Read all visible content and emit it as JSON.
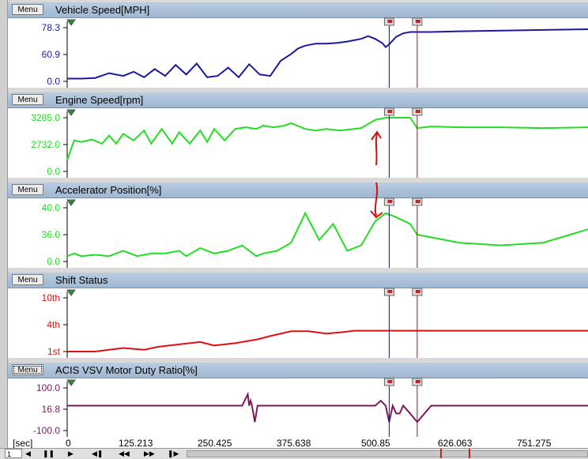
{
  "panels": [
    {
      "menu_label": "Menu",
      "title": "Vehicle Speed[MPH]",
      "color": "#1a1aa0",
      "y_ticks": [
        "78.3",
        "60.9",
        "0.0"
      ]
    },
    {
      "menu_label": "Menu",
      "title": "Engine Speed[rpm]",
      "color": "#22dd22",
      "y_ticks": [
        "3285.0",
        "2732.0",
        "0.0"
      ]
    },
    {
      "menu_label": "Menu",
      "title": "Accelerator Position[%]",
      "color": "#22dd22",
      "y_ticks": [
        "40.0",
        "36.0",
        "0.0"
      ]
    },
    {
      "menu_label": "Menu",
      "title": "Shift Status",
      "color": "#dd1111",
      "y_ticks": [
        "10th",
        "4th",
        "1st"
      ]
    },
    {
      "menu_label": "Menu",
      "title": "ACIS VSV Motor Duty Ratio[%]",
      "color": "#7a1a5a",
      "y_ticks": [
        "100.0",
        "16.8",
        "-100.0"
      ]
    }
  ],
  "x_axis": {
    "unit_label": "[sec]",
    "ticks": [
      "0",
      "125.213",
      "250.425",
      "375.638",
      "500.85",
      "626.063",
      "751.275"
    ]
  },
  "controls": {
    "page": "1"
  },
  "cursors": {
    "blue_time": 460,
    "red_time": 500
  },
  "chart_data": [
    {
      "type": "line",
      "title": "Vehicle Speed[MPH]",
      "ylim": [
        0,
        78.3
      ],
      "x": [
        0,
        20,
        40,
        60,
        80,
        95,
        110,
        125,
        140,
        155,
        170,
        185,
        200,
        215,
        230,
        245,
        260,
        275,
        290,
        305,
        320,
        330,
        340,
        355,
        370,
        385,
        400,
        410,
        420,
        430,
        440,
        450,
        455,
        460,
        470,
        480,
        490,
        500,
        520,
        560,
        620,
        680,
        744
      ],
      "values": [
        4,
        4,
        5,
        12,
        8,
        14,
        6,
        18,
        8,
        24,
        10,
        26,
        6,
        8,
        20,
        6,
        25,
        10,
        8,
        30,
        40,
        48,
        52,
        55,
        55,
        56,
        58,
        60,
        62,
        66,
        62,
        56,
        50,
        54,
        65,
        70,
        72,
        72,
        72,
        73,
        74,
        75,
        76
      ]
    },
    {
      "type": "line",
      "title": "Engine Speed[rpm]",
      "ylim": [
        0,
        3285
      ],
      "x": [
        0,
        10,
        20,
        35,
        50,
        60,
        70,
        80,
        95,
        110,
        120,
        135,
        150,
        160,
        175,
        190,
        200,
        210,
        225,
        240,
        255,
        270,
        280,
        295,
        310,
        320,
        340,
        355,
        370,
        390,
        420,
        440,
        455,
        470,
        490,
        500,
        520,
        560,
        620,
        680,
        744
      ],
      "values": [
        700,
        1900,
        1800,
        1950,
        1700,
        2200,
        1700,
        2300,
        1900,
        2500,
        1700,
        2600,
        1700,
        2400,
        1700,
        2500,
        1800,
        2600,
        1900,
        2600,
        2700,
        2600,
        2800,
        2700,
        2800,
        2950,
        2600,
        2500,
        2600,
        2500,
        2650,
        3150,
        3285,
        3285,
        3285,
        2650,
        2750,
        2700,
        2700,
        2650,
        2700
      ]
    },
    {
      "type": "line",
      "title": "Accelerator Position[%]",
      "ylim": [
        0,
        40
      ],
      "x": [
        0,
        10,
        20,
        40,
        60,
        80,
        100,
        120,
        140,
        160,
        170,
        190,
        210,
        230,
        250,
        270,
        280,
        300,
        320,
        340,
        360,
        380,
        400,
        420,
        440,
        455,
        470,
        490,
        500,
        520,
        560,
        620,
        680,
        744
      ],
      "values": [
        4,
        6,
        4,
        5,
        4,
        8,
        4,
        6,
        6,
        8,
        4,
        10,
        6,
        8,
        12,
        4,
        6,
        8,
        14,
        36,
        16,
        28,
        8,
        12,
        30,
        36,
        33,
        28,
        20,
        18,
        14,
        12,
        14,
        24
      ]
    },
    {
      "type": "line",
      "title": "Shift Status",
      "ylim": [
        1,
        10
      ],
      "x": [
        0,
        40,
        80,
        110,
        130,
        160,
        190,
        210,
        240,
        270,
        290,
        320,
        345,
        370,
        390,
        410,
        430,
        450,
        470,
        490,
        500,
        520,
        620,
        744
      ],
      "values": [
        1,
        1,
        1.6,
        1.3,
        1.8,
        2.2,
        2.6,
        2.0,
        2.4,
        3.0,
        3.6,
        4.4,
        4.4,
        4.0,
        4.2,
        4.5,
        4.5,
        4.5,
        4.5,
        4.5,
        4.5,
        4.5,
        4.5,
        4.5
      ]
    },
    {
      "type": "line",
      "title": "ACIS VSV Motor Duty Ratio[%]",
      "ylim": [
        -100,
        100
      ],
      "x": [
        0,
        250,
        258,
        260,
        262,
        264,
        266,
        268,
        270,
        272,
        274,
        280,
        360,
        380,
        400,
        420,
        440,
        448,
        455,
        460,
        465,
        470,
        475,
        480,
        490,
        500,
        520,
        744
      ],
      "values": [
        16.8,
        16.8,
        70,
        16.8,
        40,
        16.8,
        -20,
        -60,
        -20,
        16.8,
        16.8,
        16.8,
        16.8,
        16.8,
        16.8,
        16.8,
        16.8,
        40,
        16.8,
        -60,
        16.8,
        -20,
        -20,
        16.8,
        -20,
        -60,
        16.8,
        16.8
      ]
    }
  ]
}
